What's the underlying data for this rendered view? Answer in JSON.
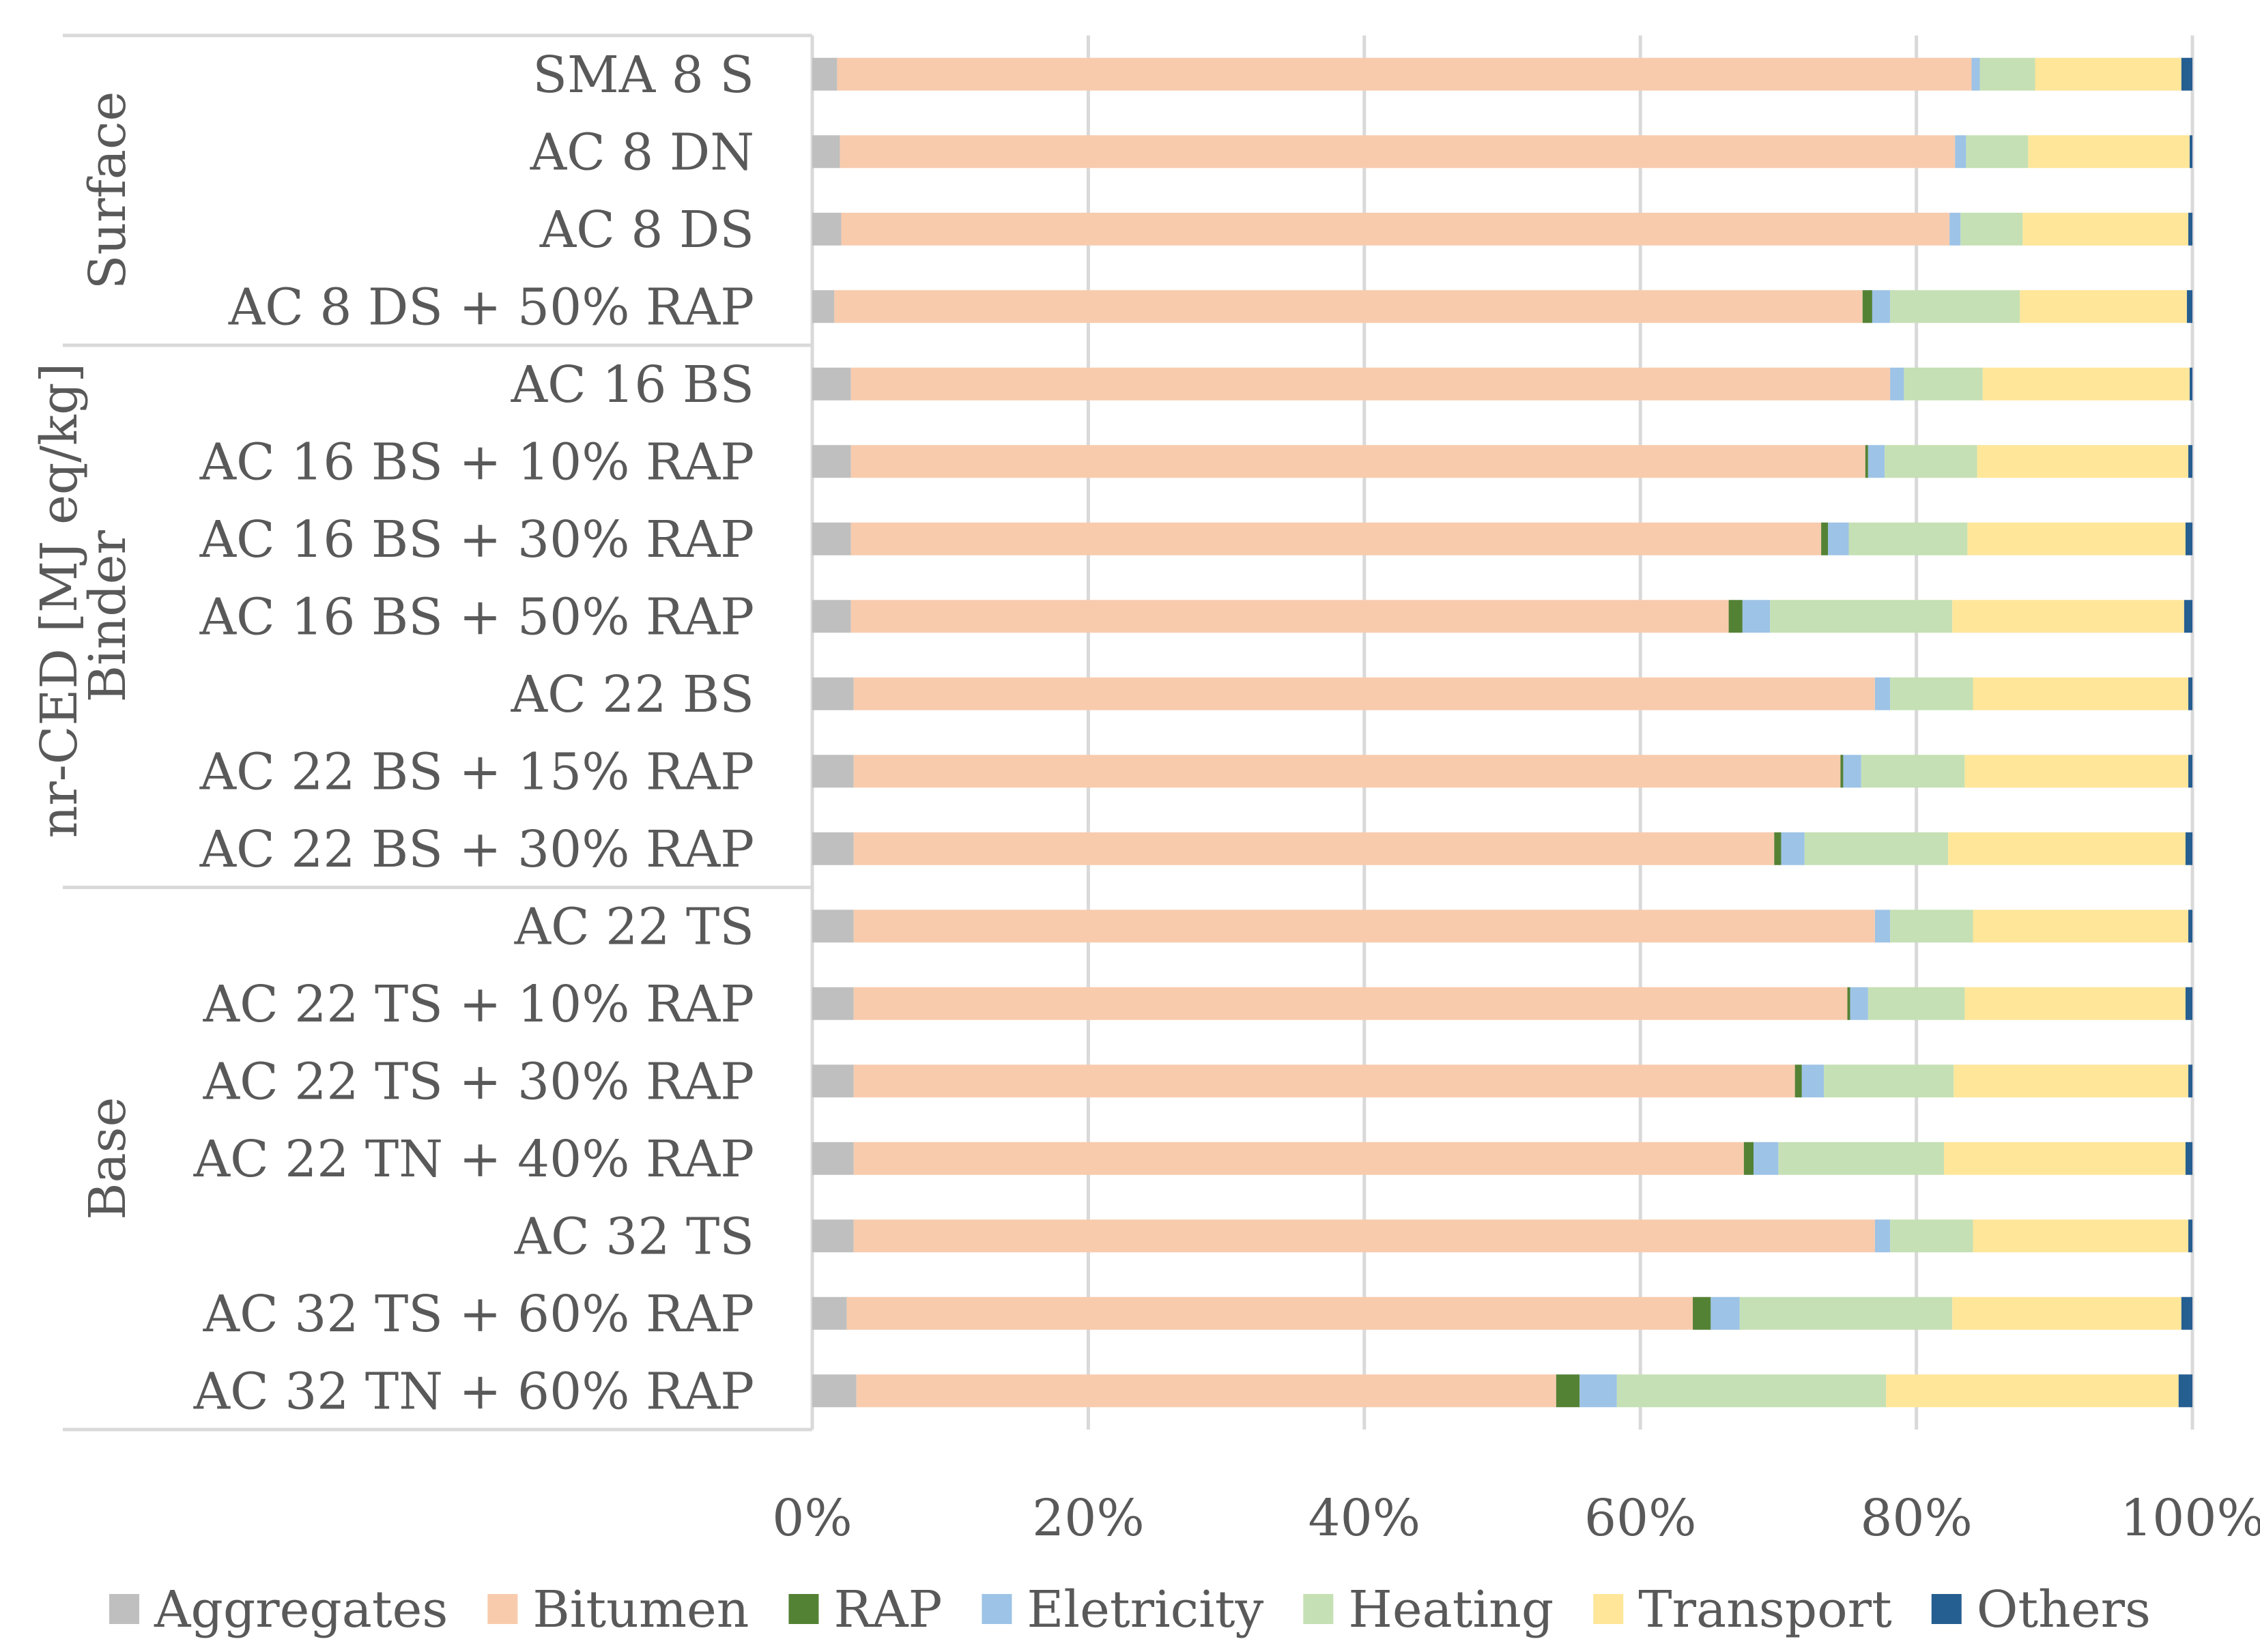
{
  "chart_data": {
    "type": "bar",
    "orientation": "horizontal",
    "stacked": "100%",
    "ylabel": "nr-CED [MJ eq/kg]",
    "categories": [
      "SMA 8 S",
      "AC 8 DN",
      "AC 8 DS",
      "AC 8 DS + 50% RAP",
      "AC 16 BS",
      "AC 16 BS + 10% RAP",
      "AC 16 BS + 30% RAP",
      "AC 16 BS + 50% RAP",
      "AC 22 BS",
      "AC 22 BS + 15% RAP",
      "AC 22 BS + 30% RAP",
      "AC 22 TS",
      "AC 22 TS + 10% RAP",
      "AC 22 TS + 30% RAP",
      "AC 22 TN + 40% RAP",
      "AC 32 TS",
      "AC 32 TS + 60% RAP",
      "AC 32 TN + 60% RAP"
    ],
    "groups": [
      {
        "name": "Surface",
        "start": 0,
        "end": 3
      },
      {
        "name": "Binder",
        "start": 4,
        "end": 10
      },
      {
        "name": "Base",
        "start": 11,
        "end": 17
      }
    ],
    "series": [
      {
        "name": "Aggregates",
        "color": "#bfbfbf",
        "values": [
          1.8,
          2.0,
          2.1,
          1.6,
          2.8,
          2.8,
          2.8,
          2.8,
          3.0,
          3.0,
          3.0,
          3.0,
          3.0,
          3.0,
          3.0,
          3.0,
          2.5,
          3.2
        ]
      },
      {
        "name": "Bitumen",
        "color": "#f8cbad",
        "values": [
          82.2,
          80.8,
          80.3,
          74.5,
          75.3,
          73.5,
          70.3,
          63.6,
          74.0,
          71.5,
          66.7,
          74.0,
          72.0,
          68.2,
          64.5,
          74.0,
          61.3,
          50.7
        ]
      },
      {
        "name": "RAP",
        "color": "#548235",
        "values": [
          0,
          0,
          0,
          0.7,
          0,
          0.2,
          0.5,
          1.0,
          0,
          0.2,
          0.5,
          0,
          0.2,
          0.5,
          0.7,
          0,
          1.3,
          1.7
        ]
      },
      {
        "name": "Eletricity",
        "color": "#9dc3e6",
        "values": [
          0.6,
          0.8,
          0.8,
          1.3,
          1.0,
          1.2,
          1.5,
          2.0,
          1.1,
          1.3,
          1.7,
          1.1,
          1.3,
          1.6,
          1.8,
          1.1,
          2.1,
          2.7
        ]
      },
      {
        "name": "Heating",
        "color": "#c5e0b4",
        "values": [
          4.0,
          4.5,
          4.5,
          9.4,
          5.7,
          6.7,
          8.6,
          13.2,
          6.0,
          7.5,
          10.4,
          6.0,
          7.0,
          9.4,
          12.0,
          6.0,
          15.4,
          19.5
        ]
      },
      {
        "name": "Transport",
        "color": "#ffe699",
        "values": [
          10.6,
          11.7,
          12.0,
          12.1,
          15.0,
          15.3,
          15.8,
          16.8,
          15.6,
          16.2,
          17.2,
          15.6,
          16.0,
          17.0,
          17.5,
          15.6,
          16.6,
          21.2
        ]
      },
      {
        "name": "Others",
        "color": "#255e91",
        "values": [
          0.8,
          0.2,
          0.3,
          0.4,
          0.2,
          0.3,
          0.5,
          0.6,
          0.3,
          0.3,
          0.5,
          0.3,
          0.5,
          0.3,
          0.5,
          0.3,
          0.8,
          1.0
        ]
      }
    ],
    "xlim": [
      0,
      100
    ],
    "xticks": [
      "0%",
      "20%",
      "40%",
      "60%",
      "80%",
      "100%"
    ],
    "grid": true,
    "legend_position": "bottom"
  }
}
